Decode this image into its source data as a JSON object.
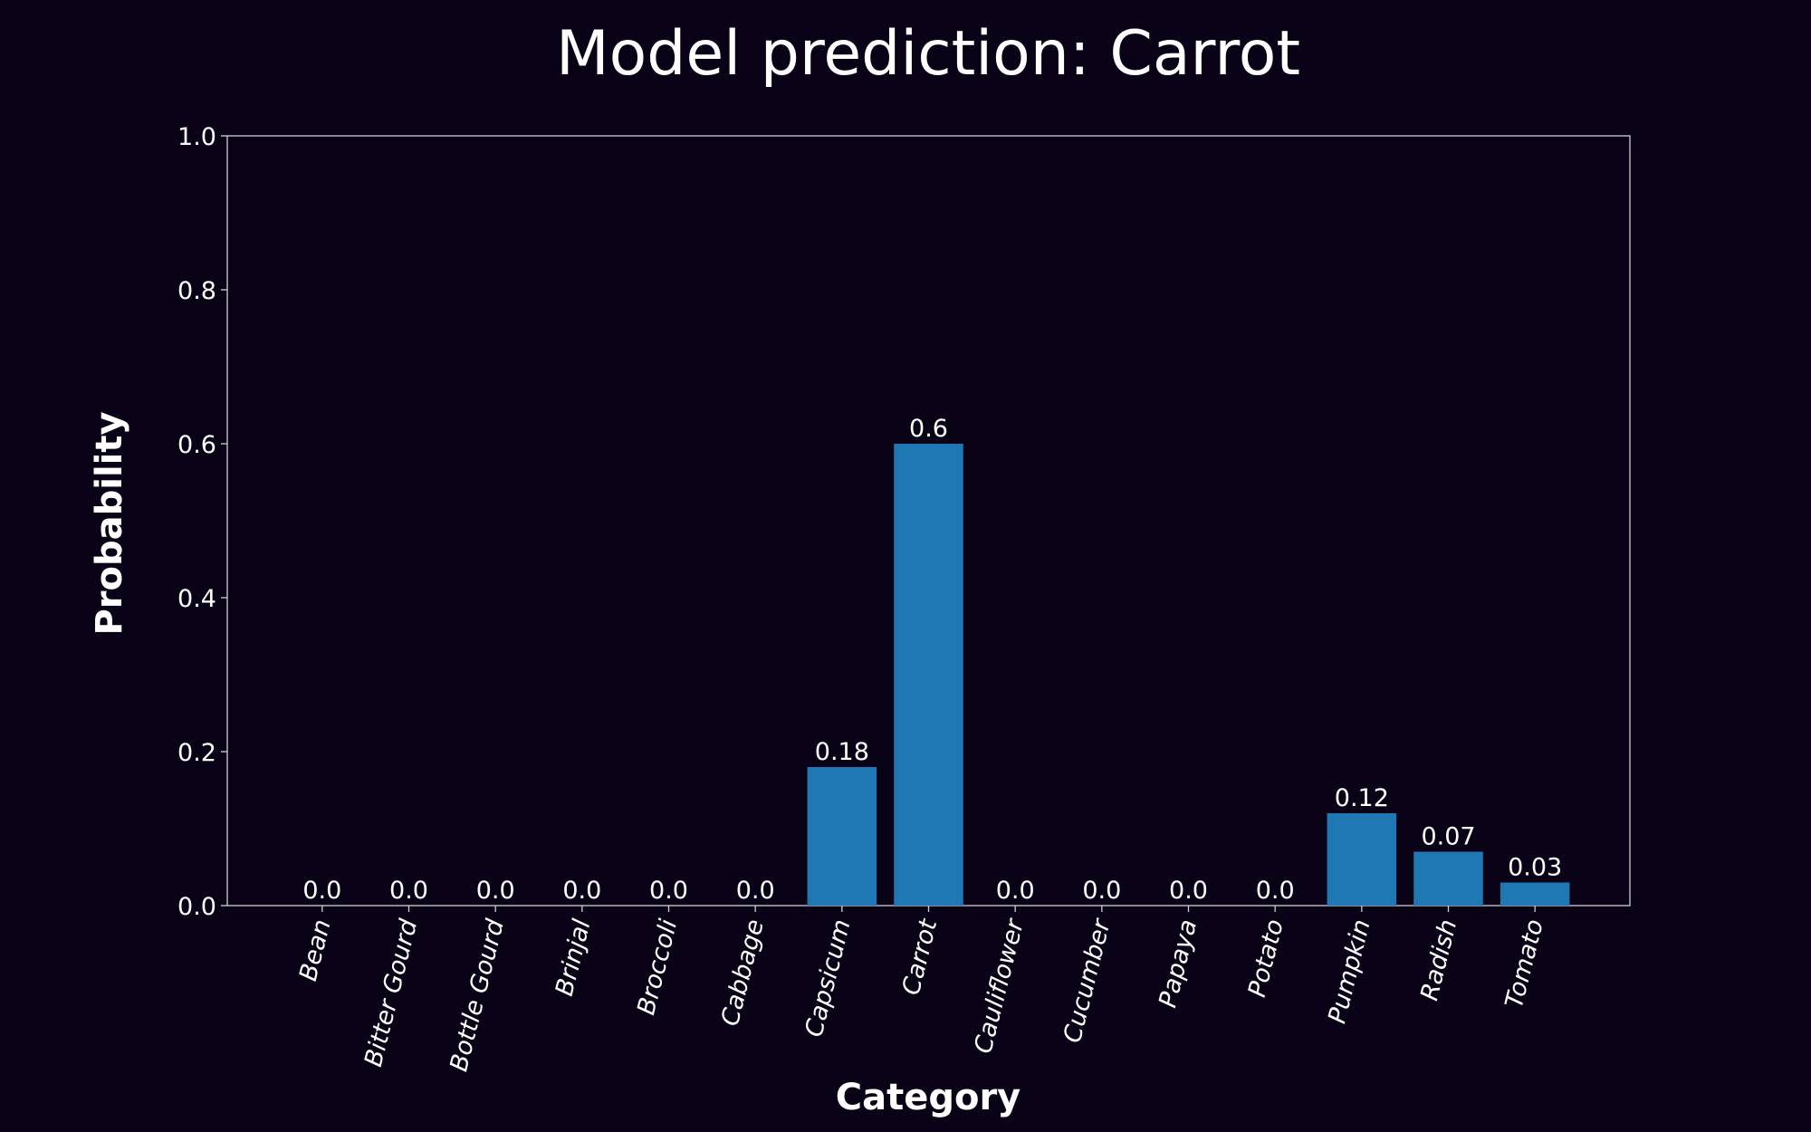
{
  "chart_data": {
    "type": "bar",
    "title": "Model prediction: Carrot",
    "xlabel": "Category",
    "ylabel": "Probability",
    "ylim": [
      0,
      1
    ],
    "yticks": [
      "0.0",
      "0.2",
      "0.4",
      "0.6",
      "0.8",
      "1.0"
    ],
    "categories": [
      "Bean",
      "Bitter Gourd",
      "Bottle Gourd",
      "Brinjal",
      "Broccoli",
      "Cabbage",
      "Capsicum",
      "Carrot",
      "Cauliflower",
      "Cucumber",
      "Papaya",
      "Potato",
      "Pumpkin",
      "Radish",
      "Tomato"
    ],
    "values": [
      0.0,
      0.0,
      0.0,
      0.0,
      0.0,
      0.0,
      0.18,
      0.6,
      0.0,
      0.0,
      0.0,
      0.0,
      0.12,
      0.07,
      0.03
    ],
    "value_labels": [
      "0.0",
      "0.0",
      "0.0",
      "0.0",
      "0.0",
      "0.0",
      "0.18",
      "0.6",
      "0.0",
      "0.0",
      "0.0",
      "0.0",
      "0.12",
      "0.07",
      "0.03"
    ],
    "bar_color": "#1f77b4",
    "background_color": "#0a0217",
    "grid": false,
    "legend": "none"
  }
}
